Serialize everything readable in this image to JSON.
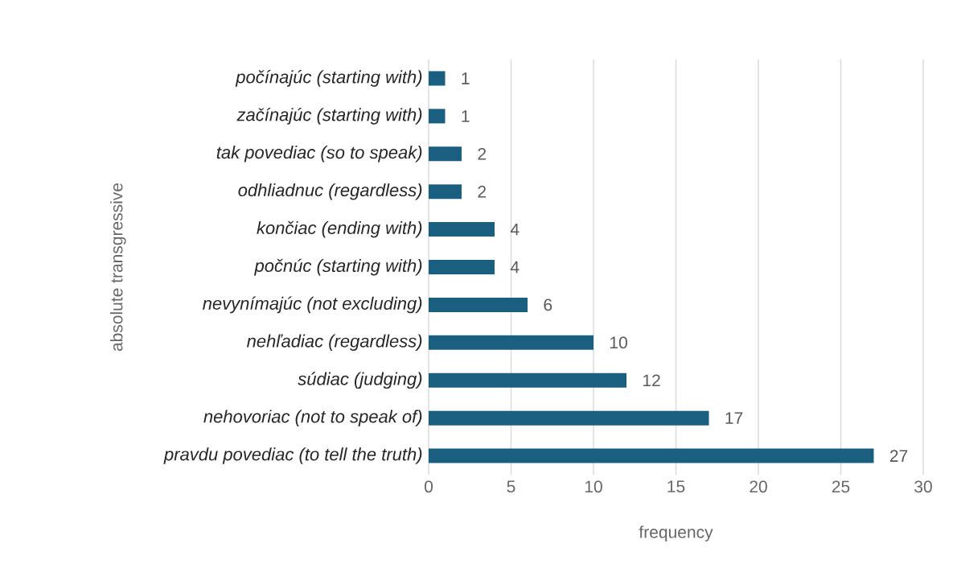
{
  "chart_data": {
    "type": "bar",
    "orientation": "horizontal",
    "categories": [
      "počínajúc (starting with)",
      "začínajúc (starting with)",
      "tak povediac (so to speak)",
      "odhliadnuc (regardless)",
      "končiac (ending with)",
      "počnúc (starting with)",
      "nevynímajúc (not excluding)",
      "nehľadiac (regardless)",
      "súdiac (judging)",
      "nehovoriac (not to speak of)",
      "pravdu povediac (to tell the truth)"
    ],
    "values": [
      1,
      1,
      2,
      2,
      4,
      4,
      6,
      10,
      12,
      17,
      27
    ],
    "color": "#1a5e80",
    "xlabel": "frequency",
    "ylabel": "absolute transgressive",
    "xlim": [
      0,
      30
    ],
    "xticks": [
      0,
      5,
      10,
      15,
      20,
      25,
      30
    ],
    "grid": "x",
    "data_labels": true
  }
}
